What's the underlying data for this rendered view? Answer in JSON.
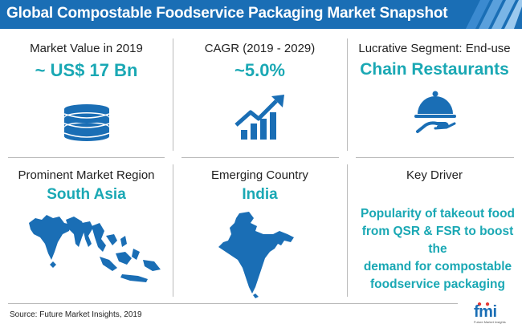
{
  "header": {
    "title": "Global Compostable Foodservice Packaging Market Snapshot"
  },
  "cells": {
    "market_value": {
      "label": "Market Value in 2019",
      "value": "~ US$ 17 Bn",
      "icon": "coins-stack-icon"
    },
    "cagr": {
      "label": "CAGR (2019 - 2029)",
      "value": "~5.0%",
      "icon": "growth-chart-icon"
    },
    "segment": {
      "label": "Lucrative Segment: End-use",
      "value": "Chain Restaurants",
      "icon": "food-cloche-icon"
    },
    "region": {
      "label": "Prominent Market Region",
      "value": "South Asia",
      "icon": "south-asia-map-icon"
    },
    "country": {
      "label": "Emerging Country",
      "value": "India",
      "icon": "india-map-icon"
    },
    "driver": {
      "label": "Key Driver",
      "lines": [
        "Popularity of takeout food",
        "from QSR & FSR to boost the",
        "demand for compostable",
        "foodservice packaging"
      ]
    }
  },
  "footer": {
    "source": "Source: Future Market Insights, 2019",
    "logo": "fmi",
    "logo_subtitle": "Future Market Insights"
  },
  "colors": {
    "header": "#1a6eb5",
    "accent": "#1aa8b4",
    "icon": "#1a6eb5"
  }
}
